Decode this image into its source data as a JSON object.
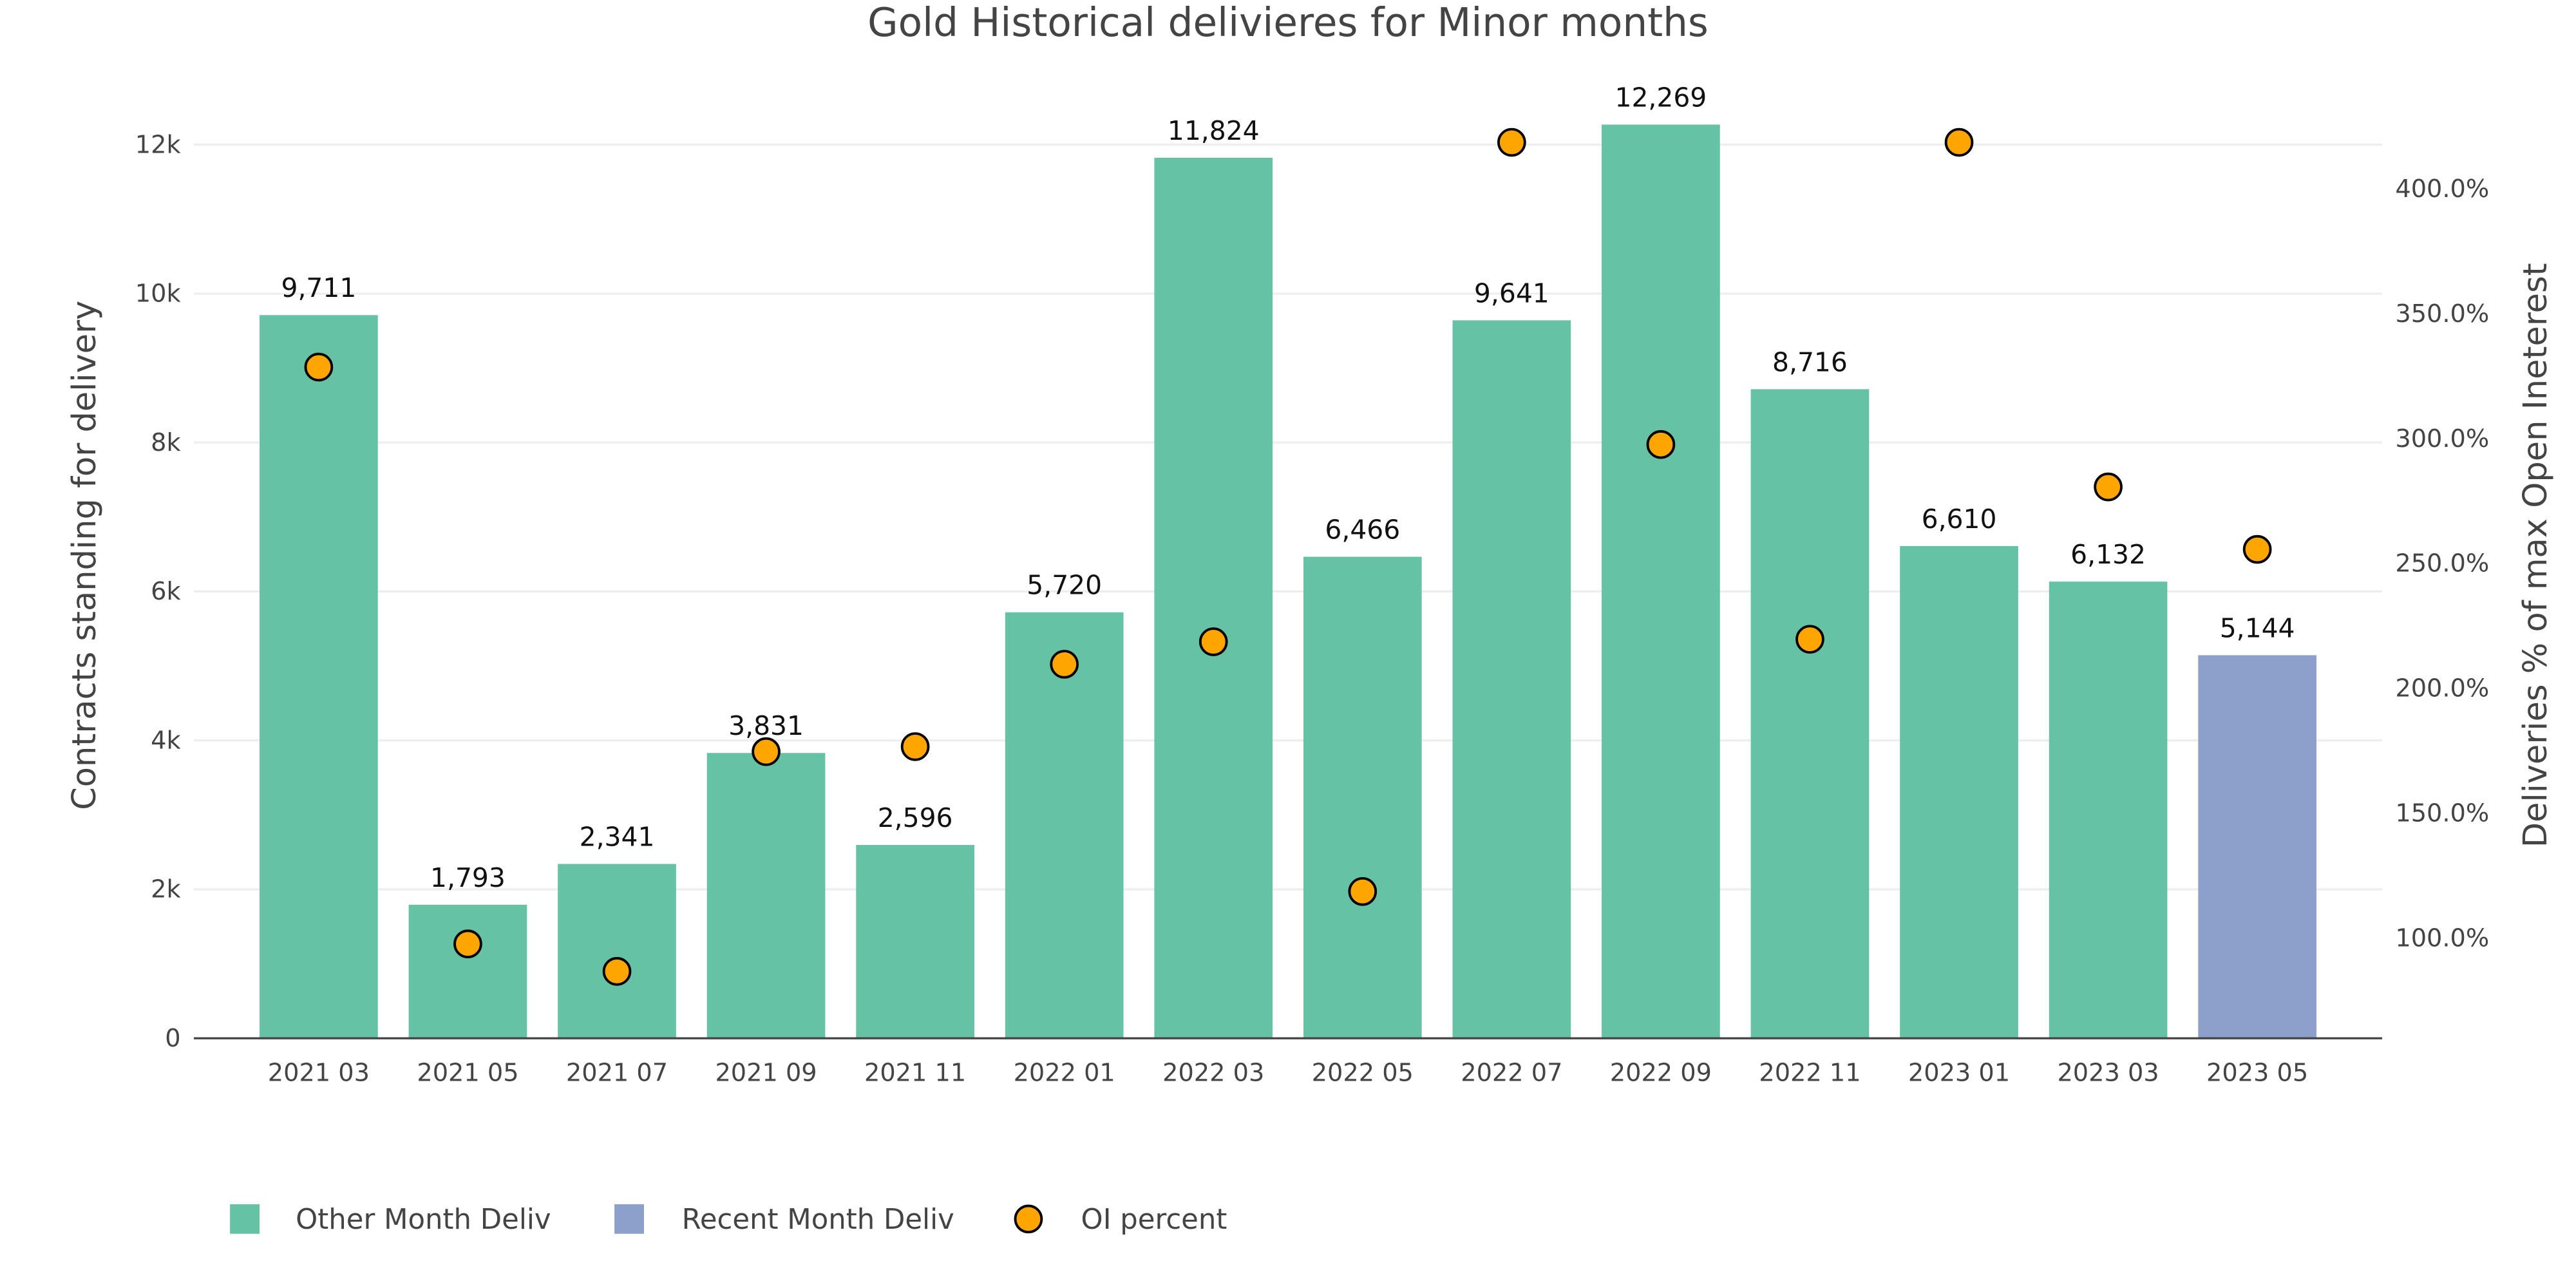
{
  "chart_data": {
    "type": "bar",
    "title": "Gold Historical delivieres for Minor months",
    "xlabel": "",
    "ylabel": "Contracts standing for delivery",
    "y2label": "Deliveries % of max Open Ineterest",
    "ylim": [
      0,
      13000
    ],
    "y2lim": [
      59,
      445
    ],
    "grid": true,
    "legend_position": "bottom-left",
    "categories": [
      "2021 03",
      "2021 05",
      "2021 07",
      "2021 09",
      "2021 11",
      "2022 01",
      "2022 03",
      "2022 05",
      "2022 07",
      "2022 09",
      "2022 11",
      "2023 01",
      "2023 03",
      "2023 05"
    ],
    "y_ticks": [
      {
        "v": 0,
        "label": "0"
      },
      {
        "v": 2000,
        "label": "2k"
      },
      {
        "v": 4000,
        "label": "4k"
      },
      {
        "v": 6000,
        "label": "6k"
      },
      {
        "v": 8000,
        "label": "8k"
      },
      {
        "v": 10000,
        "label": "10k"
      },
      {
        "v": 12000,
        "label": "12k"
      }
    ],
    "y2_ticks": [
      {
        "v": 100,
        "label": "100.0%"
      },
      {
        "v": 150,
        "label": "150.0%"
      },
      {
        "v": 200,
        "label": "200.0%"
      },
      {
        "v": 250,
        "label": "250.0%"
      },
      {
        "v": 300,
        "label": "300.0%"
      },
      {
        "v": 350,
        "label": "350.0%"
      },
      {
        "v": 400,
        "label": "400.0%"
      }
    ],
    "series": [
      {
        "name": "Other Month Deliv",
        "type": "bar",
        "color": "#66c2a5",
        "values": [
          9711,
          1793,
          2341,
          3831,
          2596,
          5720,
          11824,
          6466,
          9641,
          12269,
          8716,
          6610,
          6132,
          null
        ],
        "labels": [
          "9,711",
          "1,793",
          "2,341",
          "3,831",
          "2,596",
          "5,720",
          "11,824",
          "6,466",
          "9,641",
          "12,269",
          "8,716",
          "6,610",
          "6,132",
          null
        ]
      },
      {
        "name": "Recent Month Deliv",
        "type": "bar",
        "color": "#8da0cb",
        "values": [
          null,
          null,
          null,
          null,
          null,
          null,
          null,
          null,
          null,
          null,
          null,
          null,
          null,
          5144
        ],
        "labels": [
          null,
          null,
          null,
          null,
          null,
          null,
          null,
          null,
          null,
          null,
          null,
          null,
          null,
          "5,144"
        ]
      },
      {
        "name": "OI percent",
        "type": "scatter",
        "axis": "y2",
        "color": "#ffa500",
        "values": [
          328,
          97,
          86,
          174,
          176,
          209,
          218,
          118,
          418,
          297,
          219,
          418,
          280,
          255
        ]
      }
    ]
  }
}
